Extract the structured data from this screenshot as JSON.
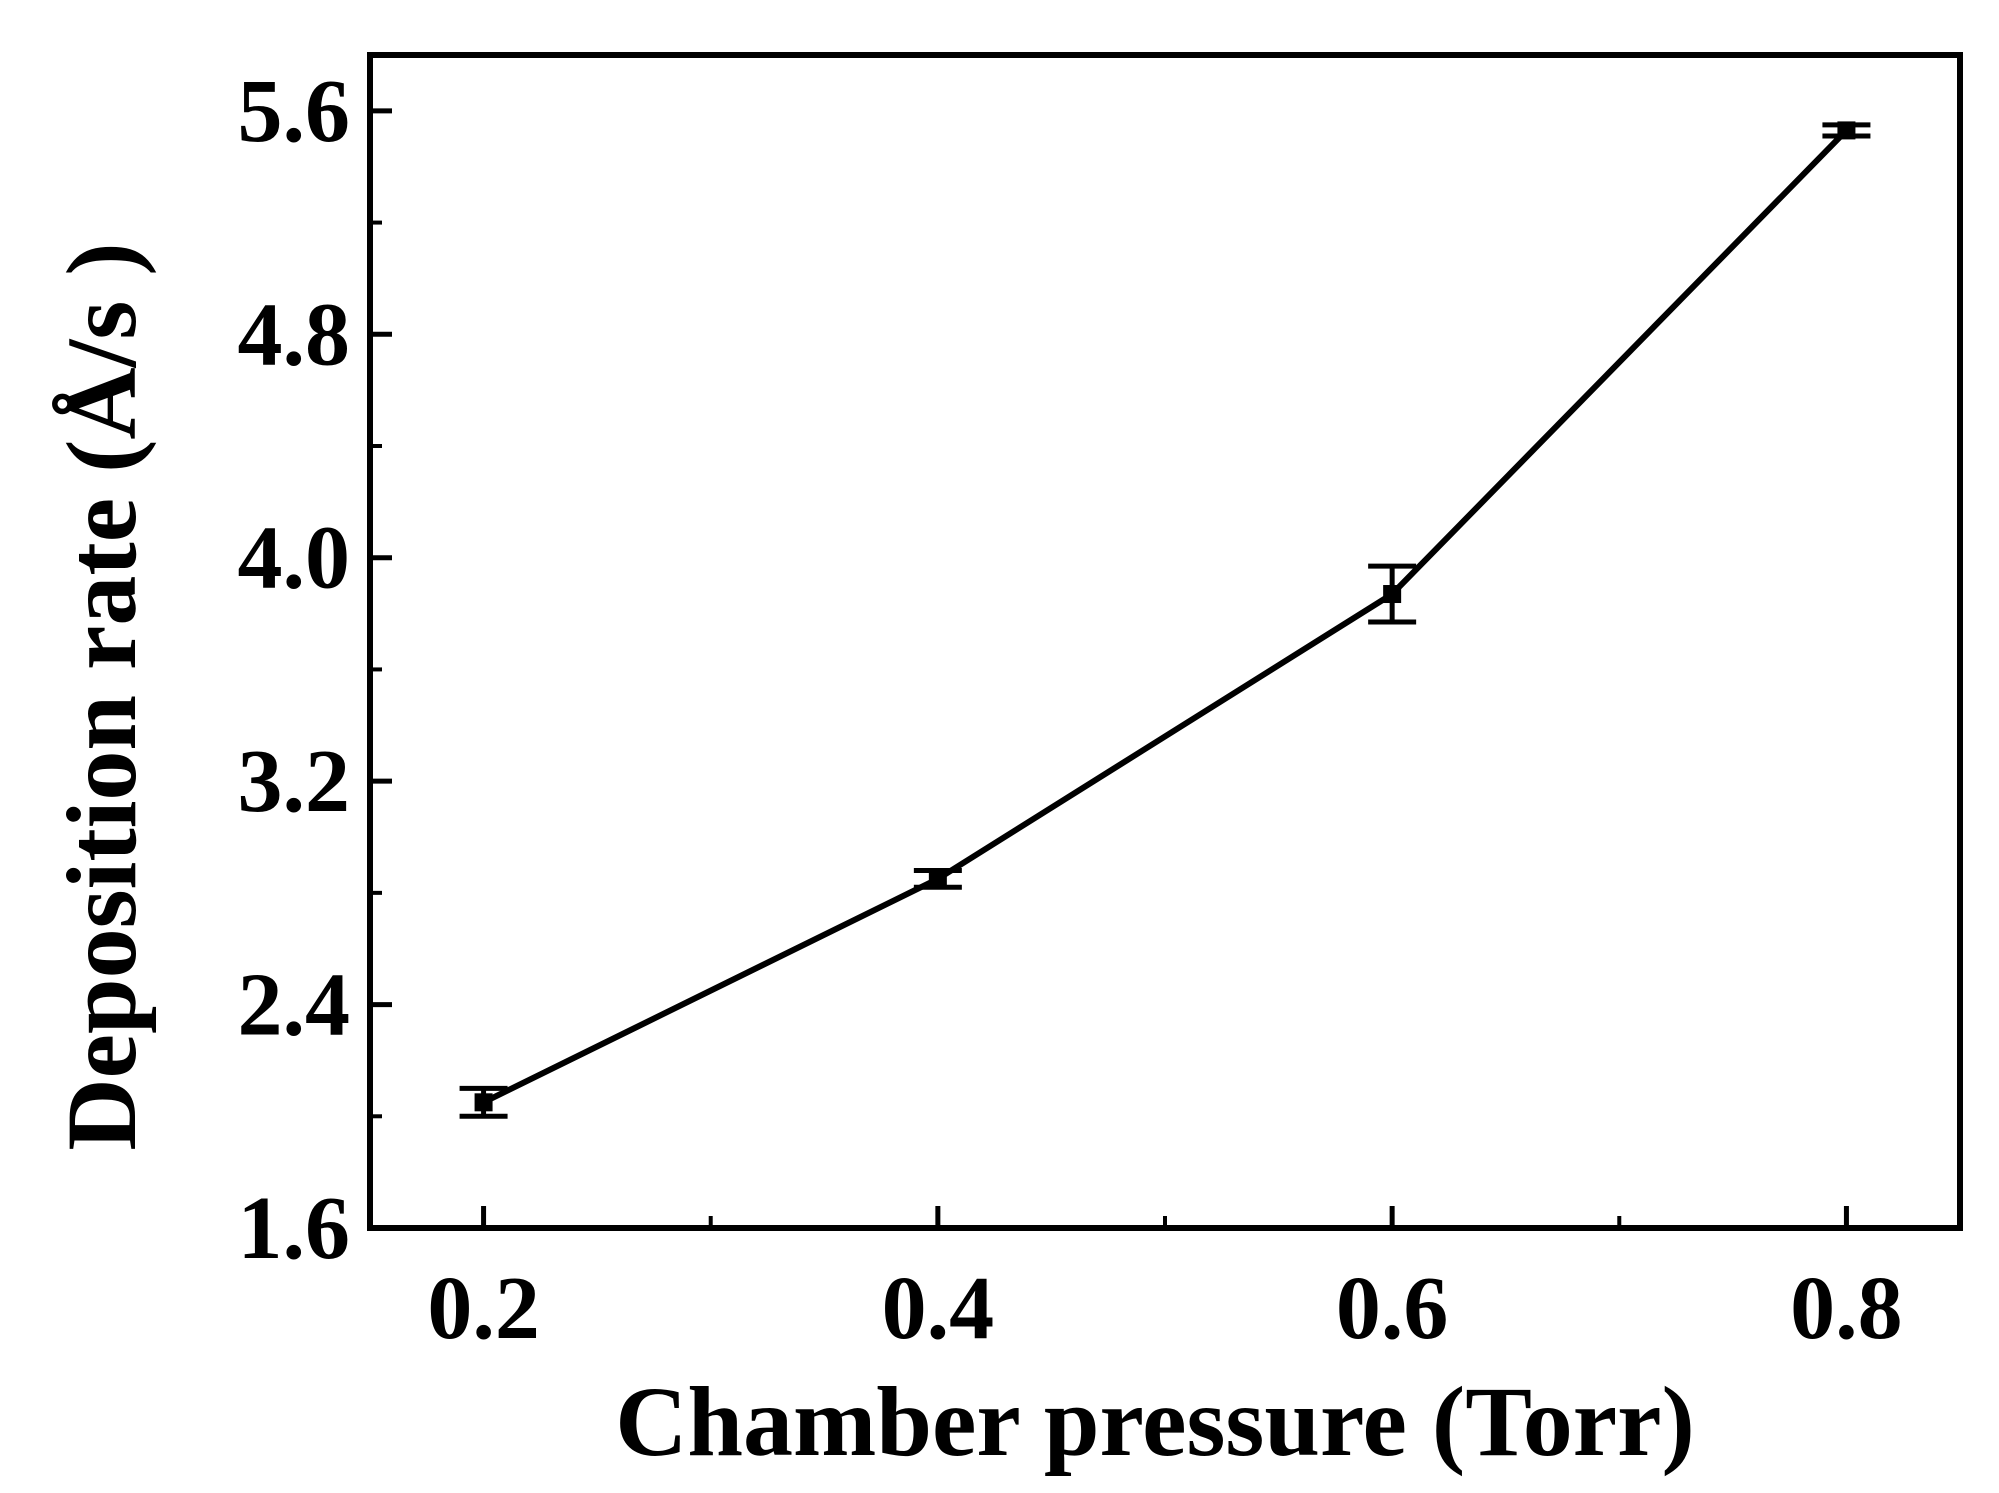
{
  "chart_data": {
    "type": "line",
    "title": "",
    "xlabel": "Chamber pressure (Torr)",
    "ylabel": "Deposition rate (Å/s )",
    "xlim": [
      0.15,
      0.85
    ],
    "ylim": [
      1.6,
      5.8
    ],
    "xticks": [
      0.2,
      0.4,
      0.6,
      0.8
    ],
    "xtick_labels": [
      "0.2",
      "0.4",
      "0.6",
      "0.8"
    ],
    "x_minor_ticks": [
      0.3,
      0.5,
      0.7
    ],
    "yticks": [
      1.6,
      2.4,
      3.2,
      4.0,
      4.8,
      5.6
    ],
    "ytick_labels": [
      "1.6",
      "2.4",
      "3.2",
      "4.0",
      "4.8",
      "5.6"
    ],
    "y_minor_ticks": [
      2.0,
      2.8,
      3.6,
      4.4,
      5.2
    ],
    "grid": false,
    "legend": false,
    "series": [
      {
        "x": [
          0.2,
          0.4,
          0.6,
          0.8
        ],
        "y": [
          2.05,
          2.85,
          3.87,
          5.53
        ],
        "yerr": [
          0.05,
          0.03,
          0.1,
          0.02
        ],
        "color": "#000000",
        "marker": "square"
      }
    ]
  }
}
